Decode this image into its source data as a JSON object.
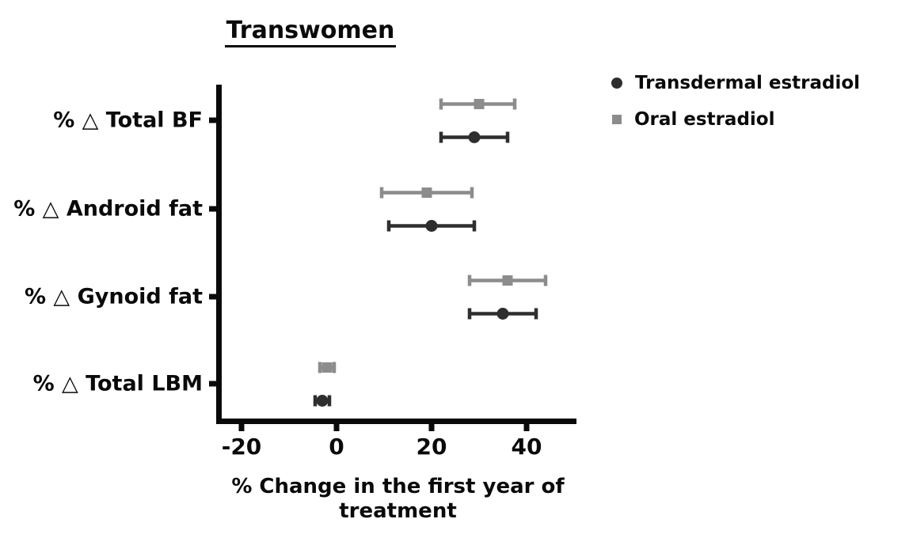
{
  "title": "Transwomen",
  "chart_data": {
    "type": "scatter",
    "subtype": "forest-plot-dots-with-error-bars",
    "title": "Transwomen",
    "xlabel": "% Change in the first year of treatment",
    "ylabel": "",
    "categories": [
      "% △ Total BF",
      "% △ Android fat",
      "% △ Gynoid fat",
      "% △ Total LBM"
    ],
    "xticks": [
      "-20",
      "0",
      "20",
      "40"
    ],
    "xtick_values": [
      -20,
      0,
      20,
      40
    ],
    "xlim": [
      -25,
      50.5
    ],
    "grid": false,
    "legend_position": "top-right",
    "axis_color": "#0a0a0a",
    "series": [
      {
        "name": "Transdermal estradiol",
        "marker": "circle",
        "color": "#2e2e2e",
        "values": [
          29,
          20,
          35,
          -3
        ],
        "ci_low": [
          22,
          11,
          28,
          -4.5
        ],
        "ci_high": [
          36,
          29,
          42,
          -1.5
        ]
      },
      {
        "name": "Oral estradiol",
        "marker": "square",
        "color": "#8c8c8c",
        "values": [
          30,
          19,
          36,
          -2
        ],
        "ci_low": [
          22,
          9.5,
          28,
          -3.5
        ],
        "ci_high": [
          37.5,
          28.5,
          44,
          -0.5
        ]
      }
    ]
  }
}
